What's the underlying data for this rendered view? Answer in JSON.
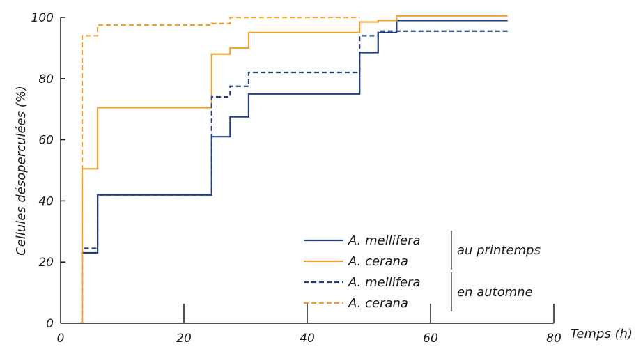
{
  "chart_data": {
    "type": "line",
    "step": true,
    "xlabel": "Temps (h)",
    "ylabel": "Cellules désoperculées (%)",
    "xlim": [
      0,
      80
    ],
    "ylim": [
      0,
      100
    ],
    "xticks": [
      0,
      20,
      40,
      60,
      80
    ],
    "yticks": [
      0,
      20,
      40,
      60,
      80,
      100
    ],
    "x_tick_labels": [
      "0",
      "20",
      "40",
      "60",
      "80"
    ],
    "y_tick_labels": [
      "0",
      "20",
      "40",
      "60",
      "80",
      "100"
    ],
    "grid": false,
    "legend_position": "bottom-right",
    "series": [
      {
        "name": "A. mellifera",
        "group": "au printemps",
        "color": "#1f3f7f",
        "dash": "solid",
        "x": [
          3.5,
          3.5,
          6,
          6,
          24.5,
          24.5,
          27.5,
          27.5,
          30.5,
          30.5,
          48.5,
          48.5,
          51.5,
          51.5,
          54.5,
          54.5,
          72.5
        ],
        "y": [
          0,
          23,
          23,
          42,
          42,
          61,
          61,
          67.5,
          67.5,
          75,
          75,
          88.5,
          88.5,
          95,
          95,
          99,
          99
        ]
      },
      {
        "name": "A. cerana",
        "group": "au printemps",
        "color": "#f0a030",
        "dash": "solid",
        "x": [
          3.5,
          3.5,
          6,
          6,
          24.5,
          24.5,
          27.5,
          27.5,
          30.5,
          30.5,
          48.5,
          48.5,
          51.5,
          51.5,
          54.5,
          54.5,
          72.5
        ],
        "y": [
          0,
          50.5,
          50.5,
          70.5,
          70.5,
          88,
          88,
          90,
          90,
          95,
          95,
          98.5,
          98.5,
          99,
          99,
          100.5,
          100.5
        ]
      },
      {
        "name": "A. mellifera",
        "group": "en automne",
        "color": "#1f3f7f",
        "dash": "dashed",
        "x": [
          3.5,
          3.5,
          6,
          6,
          24.5,
          24.5,
          27.5,
          27.5,
          30.5,
          30.5,
          48.5,
          48.5,
          51.5,
          51.5,
          72.5
        ],
        "y": [
          0,
          24.5,
          24.5,
          42,
          42,
          74,
          74,
          77.5,
          77.5,
          82,
          82,
          94,
          94,
          95.5,
          95.5
        ]
      },
      {
        "name": "A. cerana",
        "group": "en automne",
        "color": "#f0a030",
        "dash": "dashed",
        "x": [
          3.5,
          3.5,
          6,
          6,
          24.5,
          24.5,
          27.5,
          27.5,
          48.5
        ],
        "y": [
          0,
          94,
          94,
          97.5,
          97.5,
          98,
          98,
          100,
          100
        ]
      }
    ],
    "legend_groups": [
      {
        "label": "au printemps",
        "series": [
          0,
          1
        ]
      },
      {
        "label": "en automne",
        "series": [
          2,
          3
        ]
      }
    ]
  }
}
